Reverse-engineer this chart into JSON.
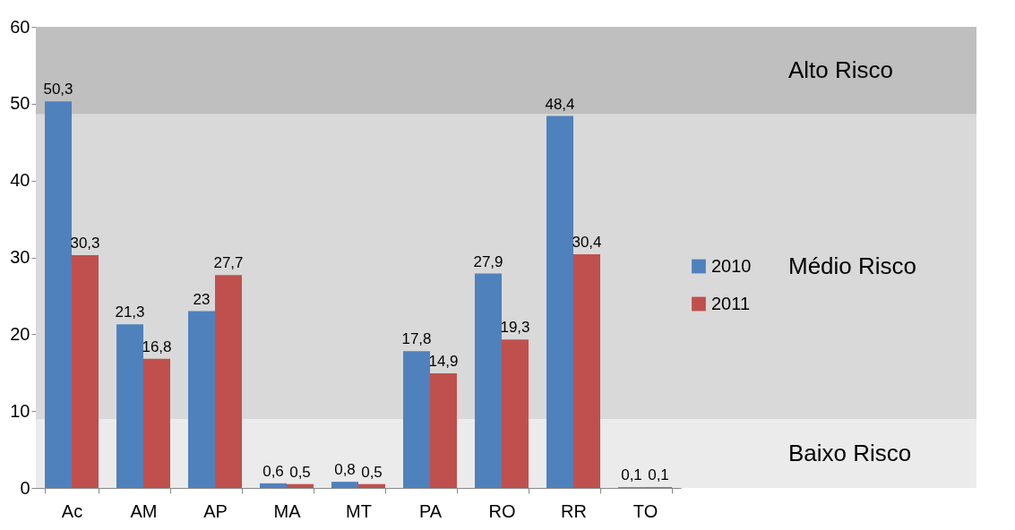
{
  "chart_data": {
    "type": "bar",
    "categories": [
      "Ac",
      "AM",
      "AP",
      "MA",
      "MT",
      "PA",
      "RO",
      "RR",
      "TO"
    ],
    "series": [
      {
        "name": "2010",
        "color": "#4f81bd",
        "values": [
          50.3,
          21.3,
          23,
          0.6,
          0.8,
          17.8,
          27.9,
          48.4,
          0.1
        ],
        "value_labels": [
          "50,3",
          "21,3",
          "23",
          "0,6",
          "0,8",
          "17,8",
          "27,9",
          "48,4",
          "0,1"
        ]
      },
      {
        "name": "2011",
        "color": "#c0504d",
        "values": [
          30.3,
          16.8,
          27.7,
          0.5,
          0.5,
          14.9,
          19.3,
          30.4,
          0.1
        ],
        "value_labels": [
          "30,3",
          "16,8",
          "27,7",
          "0,5",
          "0,5",
          "14,9",
          "19,3",
          "30,4",
          "0,1"
        ]
      }
    ],
    "ylim": [
      0,
      60
    ],
    "yticks": [
      0,
      10,
      20,
      30,
      40,
      50,
      60
    ],
    "grid": false,
    "legend": "right",
    "bands": [
      {
        "axis": "y",
        "from": 48.6,
        "to": 60,
        "label": "Alto Risco",
        "color": "#bfbfbf"
      },
      {
        "axis": "y",
        "from": 8.9,
        "to": 48.6,
        "label": "Médio Risco",
        "color": "#d9d9d9"
      },
      {
        "axis": "y",
        "from": 0,
        "to": 8.9,
        "label": "Baixo Risco",
        "color": "#ebebeb"
      }
    ]
  }
}
